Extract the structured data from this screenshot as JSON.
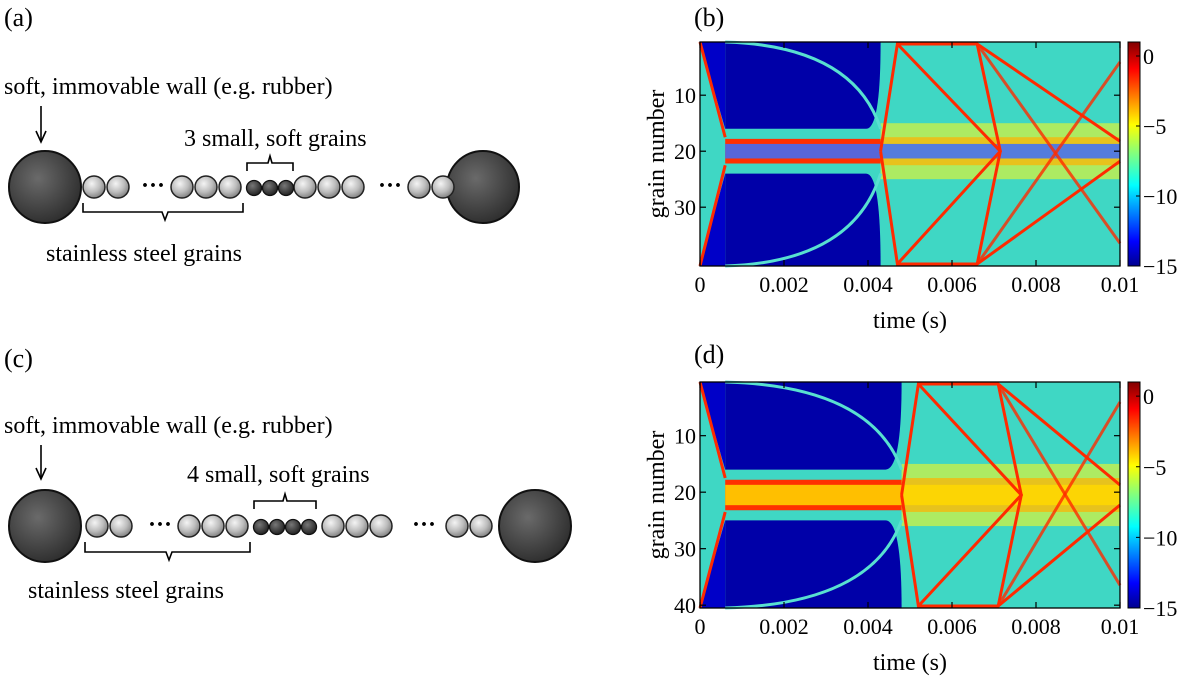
{
  "panels": {
    "a": {
      "label": "(a)",
      "wall_label": "soft, immovable wall (e.g. rubber)",
      "soft_label": "3 small, soft grains",
      "steel_label": "stainless steel grains",
      "dots": "···",
      "soft_count": 3
    },
    "c": {
      "label": "(c)",
      "wall_label": "soft, immovable wall (e.g. rubber)",
      "soft_label": "4 small, soft grains",
      "steel_label": "stainless steel grains",
      "dots": "···",
      "soft_count": 4
    }
  },
  "chart_data": [
    {
      "panel_label": "(b)",
      "type": "heatmap",
      "xlabel": "time (s)",
      "ylabel": "grain number",
      "xlim": [
        0,
        0.01
      ],
      "ylim": [
        1,
        40
      ],
      "x_ticks": [
        0,
        0.002,
        0.004,
        0.006,
        0.008,
        0.01
      ],
      "x_tick_labels": [
        "0",
        "0.002",
        "0.004",
        "0.006",
        "0.008",
        "0.01"
      ],
      "y_ticks": [
        10,
        20,
        30
      ],
      "y_tick_labels": [
        "10",
        "20",
        "30"
      ],
      "colorbar": {
        "min": -15,
        "max": 1,
        "ticks": [
          0,
          -5,
          -10,
          -15
        ],
        "tick_labels": [
          "0",
          "−5",
          "−10",
          "−15"
        ],
        "colormap": "jet"
      },
      "soft_grains": [
        19,
        21
      ],
      "fronts_initial": 0.0006,
      "breakout_time": 0.0043,
      "wall_reflect_time": 0.0047,
      "wall_return_time": 0.0066
    },
    {
      "panel_label": "(d)",
      "type": "heatmap",
      "xlabel": "time (s)",
      "ylabel": "grain number",
      "xlim": [
        0,
        0.01
      ],
      "ylim": [
        1,
        40
      ],
      "x_ticks": [
        0,
        0.002,
        0.004,
        0.006,
        0.008,
        0.01
      ],
      "x_tick_labels": [
        "0",
        "0.002",
        "0.004",
        "0.006",
        "0.008",
        "0.01"
      ],
      "y_ticks": [
        10,
        20,
        30,
        40
      ],
      "y_tick_labels": [
        "10",
        "20",
        "30",
        "40"
      ],
      "colorbar": {
        "min": -15,
        "max": 1,
        "ticks": [
          0,
          -5,
          -10,
          -15
        ],
        "tick_labels": [
          "0",
          "−5",
          "−10",
          "−15"
        ],
        "colormap": "jet"
      },
      "soft_grains": [
        19,
        22
      ],
      "fronts_initial": 0.0006,
      "breakout_time": 0.0048,
      "wall_reflect_time": 0.0052,
      "wall_return_time": 0.0071
    }
  ],
  "colors": {
    "wall": "#444444",
    "steel": "#b8b8b8",
    "soft": "#3a3a3a"
  }
}
